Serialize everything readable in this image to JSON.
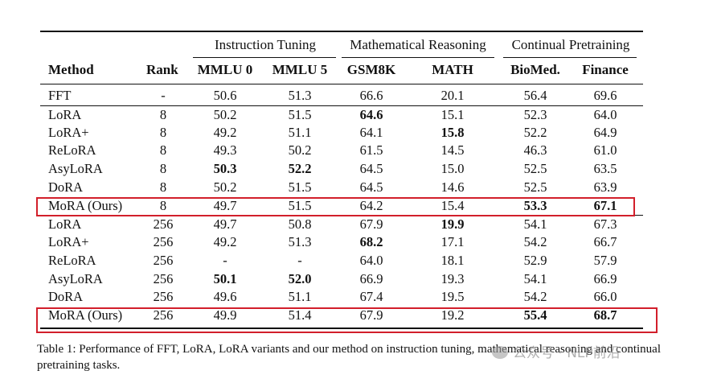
{
  "table": {
    "groups": [
      "Instruction Tuning",
      "Mathematical Reasoning",
      "Continual Pretraining"
    ],
    "columns": [
      "Method",
      "Rank",
      "MMLU 0",
      "MMLU 5",
      "GSM8K",
      "MATH",
      "BioMed.",
      "Finance"
    ],
    "rows": [
      {
        "method": "FFT",
        "rank": "-",
        "mmlu0": "50.6",
        "mmlu5": "51.3",
        "gsm8k": "66.6",
        "math": "20.1",
        "biomed": "56.4",
        "finance": "69.6",
        "bold": []
      },
      {
        "method": "LoRA",
        "rank": "8",
        "mmlu0": "50.2",
        "mmlu5": "51.5",
        "gsm8k": "64.6",
        "math": "15.1",
        "biomed": "52.3",
        "finance": "64.0",
        "bold": [
          "gsm8k"
        ]
      },
      {
        "method": "LoRA+",
        "rank": "8",
        "mmlu0": "49.2",
        "mmlu5": "51.1",
        "gsm8k": "64.1",
        "math": "15.8",
        "biomed": "52.2",
        "finance": "64.9",
        "bold": [
          "math"
        ]
      },
      {
        "method": "ReLoRA",
        "rank": "8",
        "mmlu0": "49.3",
        "mmlu5": "50.2",
        "gsm8k": "61.5",
        "math": "14.5",
        "biomed": "46.3",
        "finance": "61.0",
        "bold": []
      },
      {
        "method": "AsyLoRA",
        "rank": "8",
        "mmlu0": "50.3",
        "mmlu5": "52.2",
        "gsm8k": "64.5",
        "math": "15.0",
        "biomed": "52.5",
        "finance": "63.5",
        "bold": [
          "mmlu0",
          "mmlu5"
        ]
      },
      {
        "method": "DoRA",
        "rank": "8",
        "mmlu0": "50.2",
        "mmlu5": "51.5",
        "gsm8k": "64.5",
        "math": "14.6",
        "biomed": "52.5",
        "finance": "63.9",
        "bold": []
      },
      {
        "method": "MoRA (Ours)",
        "rank": "8",
        "mmlu0": "49.7",
        "mmlu5": "51.5",
        "gsm8k": "64.2",
        "math": "15.4",
        "biomed": "53.3",
        "finance": "67.1",
        "bold": [
          "biomed",
          "finance"
        ]
      },
      {
        "method": "LoRA",
        "rank": "256",
        "mmlu0": "49.7",
        "mmlu5": "50.8",
        "gsm8k": "67.9",
        "math": "19.9",
        "biomed": "54.1",
        "finance": "67.3",
        "bold": [
          "math"
        ]
      },
      {
        "method": "LoRA+",
        "rank": "256",
        "mmlu0": "49.2",
        "mmlu5": "51.3",
        "gsm8k": "68.2",
        "math": "17.1",
        "biomed": "54.2",
        "finance": "66.7",
        "bold": [
          "gsm8k"
        ]
      },
      {
        "method": "ReLoRA",
        "rank": "256",
        "mmlu0": "-",
        "mmlu5": "-",
        "gsm8k": "64.0",
        "math": "18.1",
        "biomed": "52.9",
        "finance": "57.9",
        "bold": []
      },
      {
        "method": "AsyLoRA",
        "rank": "256",
        "mmlu0": "50.1",
        "mmlu5": "52.0",
        "gsm8k": "66.9",
        "math": "19.3",
        "biomed": "54.1",
        "finance": "66.9",
        "bold": [
          "mmlu0",
          "mmlu5"
        ]
      },
      {
        "method": "DoRA",
        "rank": "256",
        "mmlu0": "49.6",
        "mmlu5": "51.1",
        "gsm8k": "67.4",
        "math": "19.5",
        "biomed": "54.2",
        "finance": "66.0",
        "bold": []
      },
      {
        "method": "MoRA (Ours)",
        "rank": "256",
        "mmlu0": "49.9",
        "mmlu5": "51.4",
        "gsm8k": "67.9",
        "math": "19.2",
        "biomed": "55.4",
        "finance": "68.7",
        "bold": [
          "biomed",
          "finance"
        ]
      }
    ]
  },
  "caption": "Table 1: Performance of FFT, LoRA, LoRA variants and our method on instruction tuning, mathematical reasoning and continual pretraining tasks.",
  "watermark": "公众号 · NLP前沿",
  "highlight_color": "#d21f2b"
}
